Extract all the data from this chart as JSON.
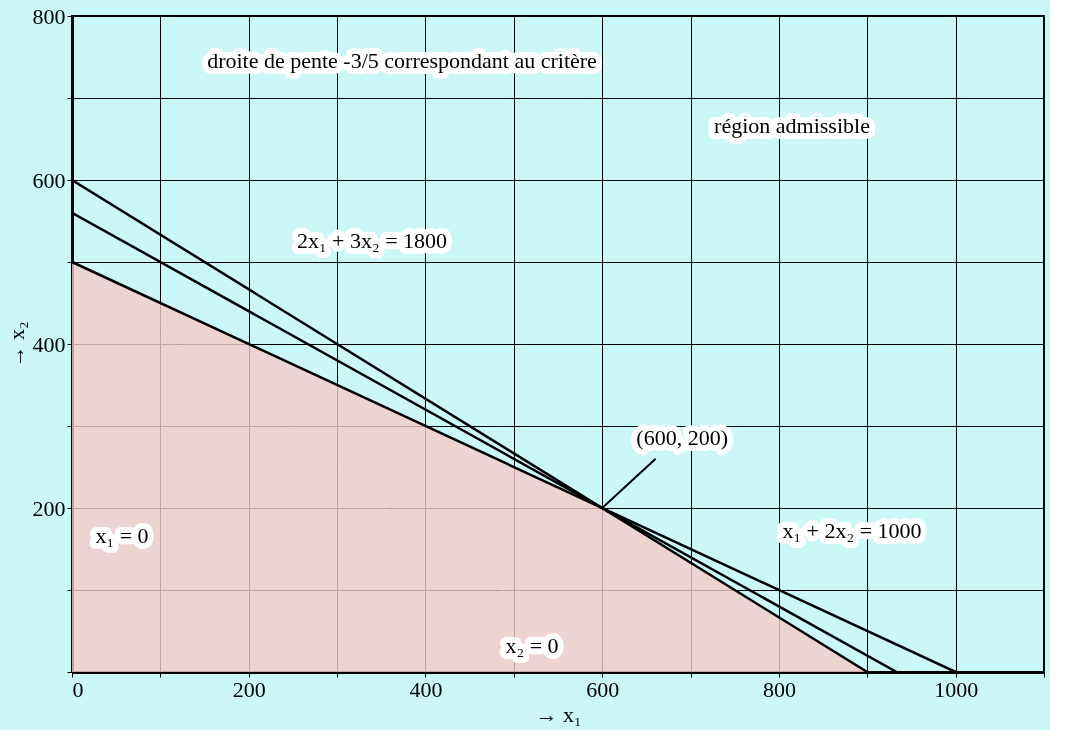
{
  "chart_data": {
    "type": "line",
    "xlabel": "→ x₁",
    "ylabel": "→ x₂",
    "xlim": [
      0,
      1100
    ],
    "ylim": [
      0,
      800
    ],
    "xticks": [
      {
        "value": 0,
        "label": "0"
      },
      {
        "value": 100,
        "label": null
      },
      200,
      {
        "value": 300,
        "label": null
      },
      400,
      {
        "value": 500,
        "label": null
      },
      600,
      {
        "value": 700,
        "label": null
      },
      800,
      {
        "value": 900,
        "label": null
      },
      1000,
      {
        "value": 1100,
        "label": null
      }
    ],
    "yticks": [
      {
        "value": 0,
        "label": null
      },
      {
        "value": 100,
        "label": null
      },
      200,
      {
        "value": 300,
        "label": null
      },
      400,
      {
        "value": 500,
        "label": null
      },
      600,
      {
        "value": 700,
        "label": null
      },
      800
    ],
    "grid": true,
    "series": [
      {
        "type": "area",
        "color": "#f6c9c9",
        "x": [
          0,
          600,
          900
        ],
        "values": [
          500,
          200,
          0
        ]
      },
      {
        "color": "#000000",
        "x": [
          0,
          900
        ],
        "values": [
          600,
          0
        ]
      },
      {
        "color": "#000000",
        "x": [
          0,
          1000
        ],
        "values": [
          500,
          0
        ]
      },
      {
        "color": "#000000",
        "x": [
          0,
          933.3
        ],
        "values": [
          560,
          0
        ]
      }
    ],
    "annotations": [
      "2x₁ + 3x₂ = 1800",
      "x₁ + 2x₂ = 1000",
      "x₁ = 0",
      "x₂ = 0",
      {
        "text": "(600, 200)",
        "x": 600,
        "y": 200
      },
      "droite de pente -3/5 correspondant au critère",
      "région admissible"
    ]
  }
}
